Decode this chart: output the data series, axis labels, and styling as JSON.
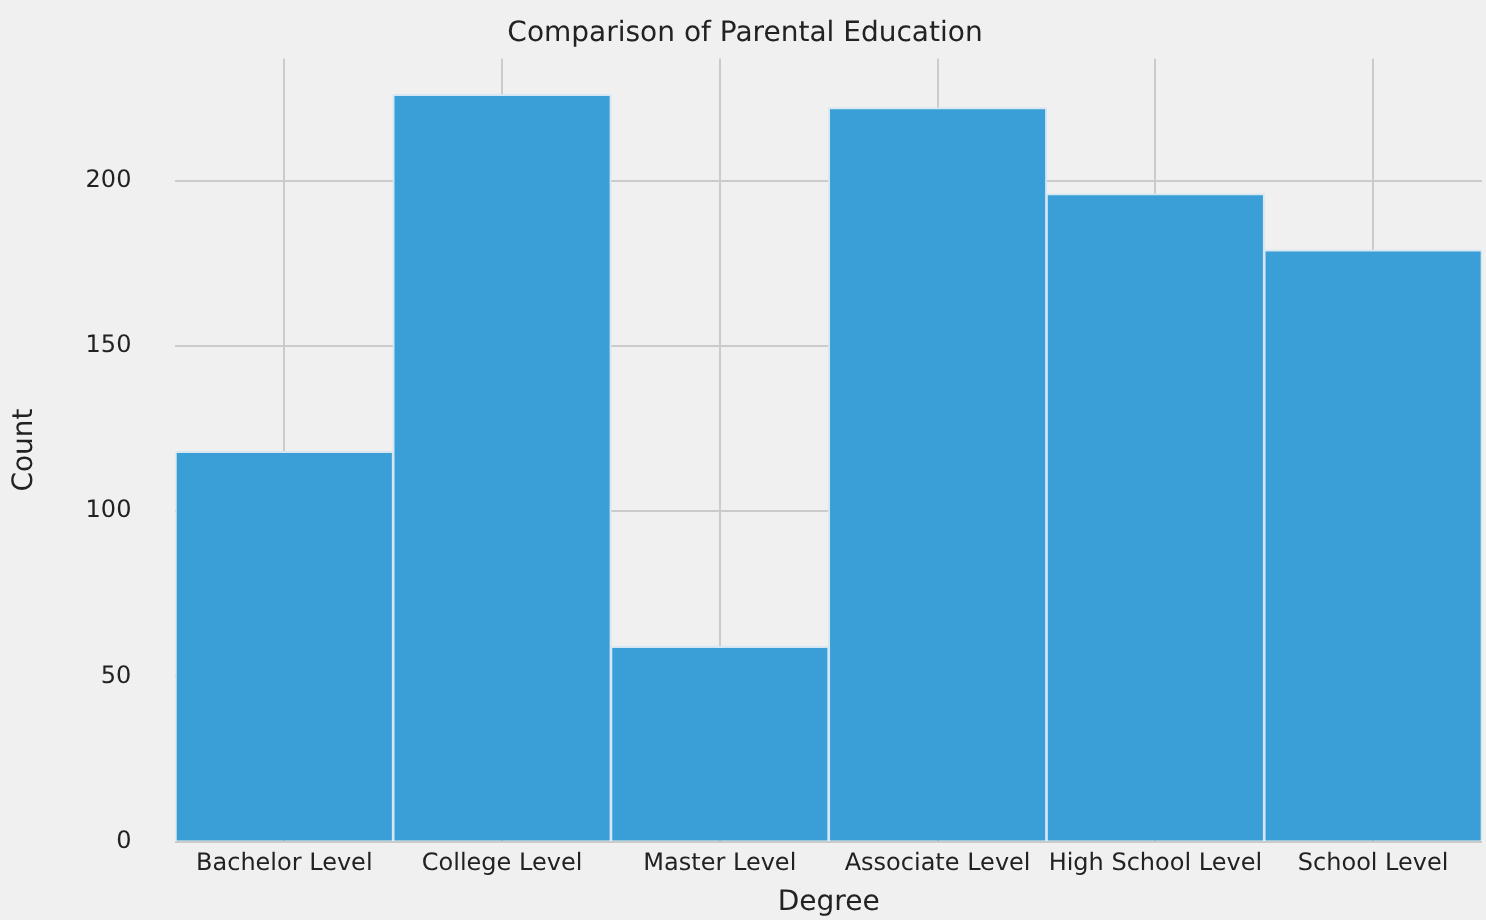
{
  "chart_data": {
    "type": "bar",
    "title": "Comparison of Parental Education",
    "xlabel": "Degree",
    "ylabel": "Count",
    "categories": [
      "Bachelor Level",
      "College Level",
      "Master Level",
      "Associate Level",
      "High School Level",
      "School Level"
    ],
    "values": [
      118,
      226,
      59,
      222,
      196,
      179
    ],
    "color": "#3a9fd6",
    "ylim": [
      0,
      237
    ],
    "yticks": [
      0,
      50,
      100,
      150,
      200
    ],
    "grid": true
  }
}
